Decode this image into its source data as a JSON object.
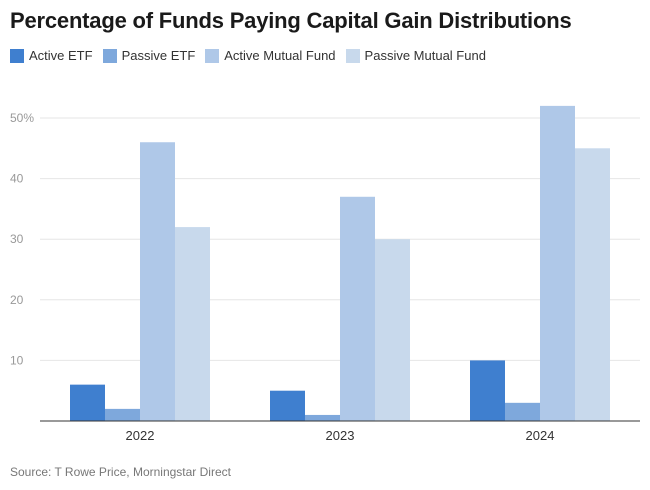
{
  "chart_data": {
    "type": "bar",
    "title": "Percentage of Funds Paying Capital Gain Distributions",
    "categories": [
      "2022",
      "2023",
      "2024"
    ],
    "series": [
      {
        "name": "Active ETF",
        "values": [
          6,
          5,
          10
        ],
        "color": "#3f7fcf"
      },
      {
        "name": "Passive ETF",
        "values": [
          2,
          1,
          3
        ],
        "color": "#7ea8dc"
      },
      {
        "name": "Active Mutual Fund",
        "values": [
          46,
          37,
          52
        ],
        "color": "#afc8e8"
      },
      {
        "name": "Passive Mutual Fund",
        "values": [
          32,
          30,
          45
        ],
        "color": "#c8d9ec"
      }
    ],
    "ylim": [
      0,
      50
    ],
    "yticks": [
      "",
      "10",
      "20",
      "30",
      "40",
      "50%"
    ],
    "grid": true,
    "legend": "top-left",
    "xlabel": "",
    "ylabel": ""
  },
  "source": "Source: T Rowe Price, Morningstar Direct"
}
